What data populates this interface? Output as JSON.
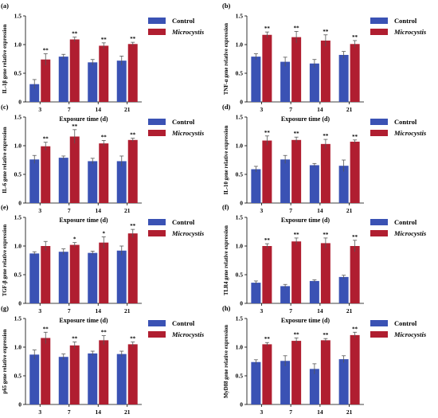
{
  "colors": {
    "control": "#3a52b4",
    "treatment": "#b01e30",
    "axis": "#000000"
  },
  "chart_data": [
    {
      "type": "bar",
      "panel_label": "(a)",
      "categories": [
        "3",
        "7",
        "14",
        "21"
      ],
      "xlabel": "Exposure time (d)",
      "ylabel": "IL-1β gene relative expression",
      "ylim": [
        0,
        1.5
      ],
      "yticks": [
        "0",
        "0.5",
        "1.0",
        "1.5"
      ],
      "legend": "top-right",
      "grid": false,
      "series": [
        {
          "name": "Control",
          "values": [
            0.31,
            0.79,
            0.69,
            0.72
          ],
          "errors": [
            0.08,
            0.04,
            0.05,
            0.08
          ]
        },
        {
          "name": "Microcystis",
          "values": [
            0.74,
            1.09,
            0.98,
            1.01
          ],
          "errors": [
            0.1,
            0.04,
            0.05,
            0.03
          ]
        }
      ],
      "annotations": [
        "**",
        "**",
        "**",
        "**"
      ]
    },
    {
      "type": "bar",
      "panel_label": "(b)",
      "categories": [
        "3",
        "7",
        "14",
        "21"
      ],
      "xlabel": "Exposure time (d)",
      "ylabel": "TNF-α gene relative expression",
      "ylim": [
        0,
        1.5
      ],
      "yticks": [
        "0",
        "0.5",
        "1.0",
        "1.5"
      ],
      "legend": "top-right",
      "grid": false,
      "series": [
        {
          "name": "Control",
          "values": [
            0.79,
            0.7,
            0.67,
            0.82
          ],
          "errors": [
            0.05,
            0.08,
            0.07,
            0.06
          ]
        },
        {
          "name": "Microcystis",
          "values": [
            1.17,
            1.13,
            1.07,
            1.01
          ],
          "errors": [
            0.05,
            0.1,
            0.1,
            0.06
          ]
        }
      ],
      "annotations": [
        "**",
        "**",
        "**",
        "**"
      ]
    },
    {
      "type": "bar",
      "panel_label": "(c)",
      "categories": [
        "3",
        "7",
        "14",
        "21"
      ],
      "xlabel": "Exposure time (d)",
      "ylabel": "IL-6 gene relative expression",
      "ylim": [
        0,
        1.5
      ],
      "yticks": [
        "0",
        "0.5",
        "1.0",
        "1.5"
      ],
      "legend": "top-right",
      "grid": false,
      "series": [
        {
          "name": "Control",
          "values": [
            0.76,
            0.79,
            0.73,
            0.73
          ],
          "errors": [
            0.07,
            0.03,
            0.05,
            0.09
          ]
        },
        {
          "name": "Microcystis",
          "values": [
            0.99,
            1.16,
            1.04,
            1.1
          ],
          "errors": [
            0.07,
            0.12,
            0.05,
            0.03
          ]
        }
      ],
      "annotations": [
        "**",
        "**",
        "**",
        "**"
      ]
    },
    {
      "type": "bar",
      "panel_label": "(d)",
      "categories": [
        "3",
        "7",
        "14",
        "21"
      ],
      "xlabel": "Exposure time (d)",
      "ylabel": "IL-10 gene relative expression",
      "ylim": [
        0,
        1.5
      ],
      "yticks": [
        "0",
        "0.5",
        "1.0",
        "1.5"
      ],
      "legend": "top-right",
      "grid": false,
      "series": [
        {
          "name": "Control",
          "values": [
            0.59,
            0.76,
            0.66,
            0.65
          ],
          "errors": [
            0.05,
            0.07,
            0.03,
            0.1
          ]
        },
        {
          "name": "Microcystis",
          "values": [
            1.09,
            1.1,
            1.03,
            1.07
          ],
          "errors": [
            0.08,
            0.05,
            0.08,
            0.03
          ]
        }
      ],
      "annotations": [
        "**",
        "**",
        "**",
        "**"
      ]
    },
    {
      "type": "bar",
      "panel_label": "(e)",
      "categories": [
        "3",
        "7",
        "14",
        "21"
      ],
      "xlabel": "Exposure time (d)",
      "ylabel": "TGF-β gene relative expression",
      "ylim": [
        0,
        1.5
      ],
      "yticks": [
        "0",
        "0.5",
        "1.0",
        "1.5"
      ],
      "legend": "top-right",
      "grid": false,
      "series": [
        {
          "name": "Control",
          "values": [
            0.87,
            0.9,
            0.88,
            0.92
          ],
          "errors": [
            0.03,
            0.05,
            0.03,
            0.08
          ]
        },
        {
          "name": "Microcystis",
          "values": [
            1.0,
            1.02,
            1.06,
            1.22
          ],
          "errors": [
            0.08,
            0.04,
            0.1,
            0.07
          ]
        }
      ],
      "annotations": [
        "",
        "*",
        "*",
        "**"
      ]
    },
    {
      "type": "bar",
      "panel_label": "(f)",
      "categories": [
        "3",
        "7",
        "14",
        "21"
      ],
      "xlabel": "Exposure time (d)",
      "ylabel": "TLR4 gene relative expression",
      "ylim": [
        0,
        1.5
      ],
      "yticks": [
        "0",
        "0.5",
        "1.0",
        "1.5"
      ],
      "legend": "top-right",
      "grid": false,
      "series": [
        {
          "name": "Control",
          "values": [
            0.36,
            0.3,
            0.39,
            0.46
          ],
          "errors": [
            0.03,
            0.03,
            0.02,
            0.03
          ]
        },
        {
          "name": "Microcystis",
          "values": [
            1.0,
            1.08,
            1.05,
            1.0
          ],
          "errors": [
            0.04,
            0.06,
            0.09,
            0.1
          ]
        }
      ],
      "annotations": [
        "**",
        "**",
        "**",
        "**"
      ]
    },
    {
      "type": "bar",
      "panel_label": "(g)",
      "categories": [
        "3",
        "7",
        "14",
        "21"
      ],
      "xlabel": "Exposure time (d)",
      "ylabel": "p65 gene relative expression",
      "ylim": [
        0,
        1.5
      ],
      "yticks": [
        "0",
        "0.5",
        "1.0",
        "1.5"
      ],
      "legend": "top-right",
      "grid": false,
      "series": [
        {
          "name": "Control",
          "values": [
            0.87,
            0.83,
            0.89,
            0.88
          ],
          "errors": [
            0.08,
            0.05,
            0.04,
            0.05
          ]
        },
        {
          "name": "Microcystis",
          "values": [
            1.16,
            1.03,
            1.12,
            1.05
          ],
          "errors": [
            0.1,
            0.06,
            0.08,
            0.04
          ]
        }
      ],
      "annotations": [
        "**",
        "**",
        "**",
        "**"
      ]
    },
    {
      "type": "bar",
      "panel_label": "(h)",
      "categories": [
        "3",
        "7",
        "14",
        "21"
      ],
      "xlabel": "Exposure time (d)",
      "ylabel": "MyD88 gene relative expression",
      "ylim": [
        0,
        1.5
      ],
      "yticks": [
        "0",
        "0.5",
        "1.0",
        "1.5"
      ],
      "legend": "top-right",
      "grid": false,
      "series": [
        {
          "name": "Control",
          "values": [
            0.74,
            0.76,
            0.62,
            0.79
          ],
          "errors": [
            0.04,
            0.09,
            0.09,
            0.06
          ]
        },
        {
          "name": "Microcystis",
          "values": [
            1.05,
            1.11,
            1.12,
            1.21
          ],
          "errors": [
            0.03,
            0.05,
            0.03,
            0.05
          ]
        }
      ],
      "annotations": [
        "**",
        "**",
        "**",
        "**"
      ]
    }
  ]
}
